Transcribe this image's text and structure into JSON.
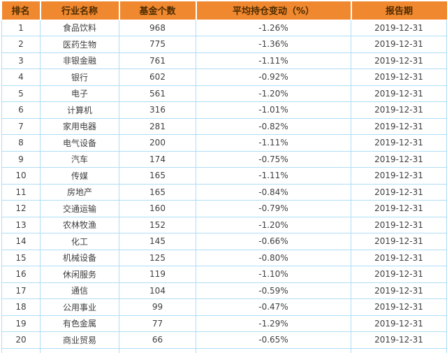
{
  "colors": {
    "header_bg": "#F0882F",
    "header_text": "#4D2B00",
    "body_text": "#3F3F3F",
    "grid_border": "#AFDDF5",
    "row_bg": "#FFFFFF"
  },
  "chart_data": {
    "type": "table",
    "title": "",
    "columns": [
      "排名",
      "行业名称",
      "基金个数",
      "平均持仓变动（%）",
      "报告期"
    ],
    "rows": [
      [
        "1",
        "食品饮料",
        "968",
        "-1.26%",
        "2019-12-31"
      ],
      [
        "2",
        "医药生物",
        "775",
        "-1.36%",
        "2019-12-31"
      ],
      [
        "3",
        "非银金融",
        "761",
        "-1.11%",
        "2019-12-31"
      ],
      [
        "4",
        "银行",
        "602",
        "-0.92%",
        "2019-12-31"
      ],
      [
        "5",
        "电子",
        "561",
        "-1.20%",
        "2019-12-31"
      ],
      [
        "6",
        "计算机",
        "316",
        "-1.01%",
        "2019-12-31"
      ],
      [
        "7",
        "家用电器",
        "281",
        "-0.82%",
        "2019-12-31"
      ],
      [
        "8",
        "电气设备",
        "200",
        "-1.11%",
        "2019-12-31"
      ],
      [
        "9",
        "汽车",
        "174",
        "-0.75%",
        "2019-12-31"
      ],
      [
        "10",
        "传媒",
        "165",
        "-1.11%",
        "2019-12-31"
      ],
      [
        "11",
        "房地产",
        "165",
        "-0.84%",
        "2019-12-31"
      ],
      [
        "12",
        "交通运输",
        "160",
        "-0.79%",
        "2019-12-31"
      ],
      [
        "13",
        "农林牧渔",
        "152",
        "-1.20%",
        "2019-12-31"
      ],
      [
        "14",
        "化工",
        "145",
        "-0.66%",
        "2019-12-31"
      ],
      [
        "15",
        "机械设备",
        "125",
        "-0.80%",
        "2019-12-31"
      ],
      [
        "16",
        "休闲服务",
        "119",
        "-1.10%",
        "2019-12-31"
      ],
      [
        "17",
        "通信",
        "104",
        "-0.59%",
        "2019-12-31"
      ],
      [
        "18",
        "公用事业",
        "99",
        "-0.47%",
        "2019-12-31"
      ],
      [
        "19",
        "有色金属",
        "77",
        "-1.29%",
        "2019-12-31"
      ],
      [
        "20",
        "商业贸易",
        "66",
        "-0.65%",
        "2019-12-31"
      ]
    ]
  }
}
